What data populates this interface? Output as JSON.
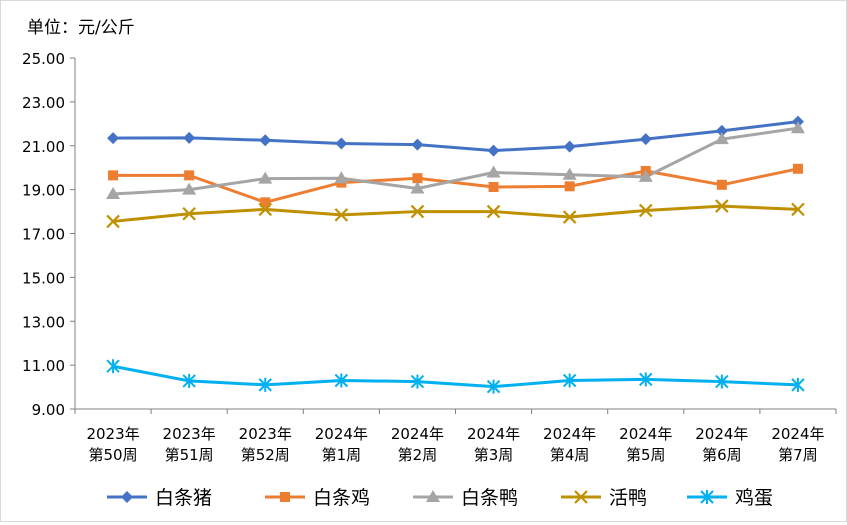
{
  "unit_label": "单位：元/公斤",
  "chart_data": {
    "type": "line",
    "ylim": [
      9,
      25
    ],
    "y_ticks": [
      "25.00",
      "23.00",
      "21.00",
      "19.00",
      "17.00",
      "15.00",
      "13.00",
      "11.00",
      "9.00"
    ],
    "y_tick_values": [
      25,
      23,
      21,
      19,
      17,
      15,
      13,
      11,
      9
    ],
    "grid": false,
    "legend_position": "bottom",
    "categories": [
      [
        "2023年",
        "第50周"
      ],
      [
        "2023年",
        "第51周"
      ],
      [
        "2023年",
        "第52周"
      ],
      [
        "2024年",
        "第1周"
      ],
      [
        "2024年",
        "第2周"
      ],
      [
        "2024年",
        "第3周"
      ],
      [
        "2024年",
        "第4周"
      ],
      [
        "2024年",
        "第5周"
      ],
      [
        "2024年",
        "第6周"
      ],
      [
        "2024年",
        "第7周"
      ]
    ],
    "series": [
      {
        "name": "白条猪",
        "marker": "diamond",
        "color": "#4472C4",
        "values": [
          21.35,
          21.36,
          21.25,
          21.1,
          21.05,
          20.78,
          20.96,
          21.3,
          21.68,
          22.1
        ]
      },
      {
        "name": "白条鸡",
        "marker": "square",
        "color": "#ED7D31",
        "values": [
          19.65,
          19.65,
          18.42,
          19.32,
          19.52,
          19.12,
          19.15,
          19.85,
          19.22,
          19.95
        ]
      },
      {
        "name": "白条鸭",
        "marker": "triangle",
        "color": "#A5A5A5",
        "values": [
          18.8,
          19.0,
          19.5,
          19.52,
          19.05,
          19.78,
          19.68,
          19.58,
          21.3,
          21.8
        ]
      },
      {
        "name": "活鸭",
        "marker": "x",
        "color": "#BF9000",
        "values": [
          17.55,
          17.9,
          18.1,
          17.85,
          18.0,
          18.0,
          17.75,
          18.05,
          18.25,
          18.1
        ]
      },
      {
        "name": "鸡蛋",
        "marker": "star",
        "color": "#00B0F0",
        "values": [
          10.95,
          10.28,
          10.1,
          10.3,
          10.25,
          10.02,
          10.3,
          10.35,
          10.25,
          10.1
        ]
      }
    ]
  }
}
